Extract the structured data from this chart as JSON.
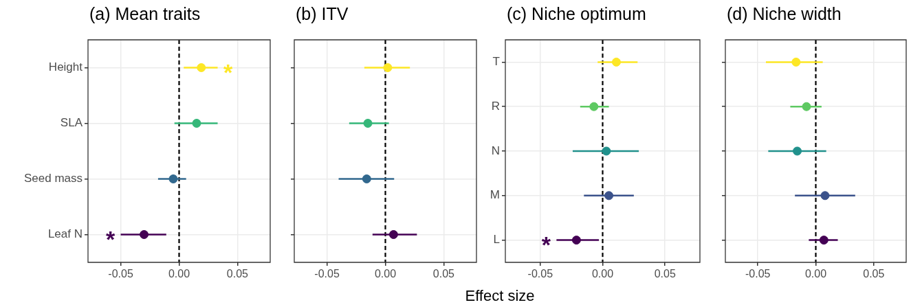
{
  "chart_data": [
    {
      "type": "scatter",
      "title": "(a) Mean traits",
      "orientation": "horizontal",
      "categories": [
        "Height",
        "SLA",
        "Seed mass",
        "Leaf N"
      ],
      "values": [
        0.019,
        0.015,
        -0.005,
        -0.03
      ],
      "errors": [
        [
          0.004,
          0.033
        ],
        [
          -0.004,
          0.033
        ],
        [
          -0.018,
          0.006
        ],
        [
          -0.05,
          -0.011
        ]
      ],
      "colors": [
        "#fde725",
        "#35b779",
        "#31688e",
        "#440154"
      ],
      "xlim": [
        -0.078,
        0.078
      ],
      "xticks": [
        {
          "value": -0.05,
          "label": "-0.05"
        },
        {
          "value": 0,
          "label": "0.00"
        },
        {
          "value": 0.05,
          "label": "0.05"
        }
      ],
      "ref_lines": [
        {
          "axis": "x",
          "value": 0,
          "line_style": "dashed",
          "color": "#000000"
        }
      ],
      "annotations": [
        {
          "text": "*",
          "x": 0.033,
          "y": "Height"
        },
        {
          "text": "*",
          "x": -0.05,
          "y": "Leaf N"
        }
      ],
      "grid": true,
      "marker": "circle",
      "legend": false
    },
    {
      "type": "scatter",
      "title": "(b) ITV",
      "xlabel": "Effect size",
      "orientation": "horizontal",
      "categories": [
        null,
        null,
        null,
        null
      ],
      "values": [
        0.002,
        -0.015,
        -0.016,
        0.007
      ],
      "errors": [
        [
          -0.018,
          0.021
        ],
        [
          -0.031,
          0.003
        ],
        [
          -0.04,
          0.0075
        ],
        [
          -0.011,
          0.027
        ]
      ],
      "colors": [
        "#fde725",
        "#35b779",
        "#31688e",
        "#440154"
      ],
      "xlim": [
        -0.078,
        0.078
      ],
      "xticks": [
        {
          "value": -0.05,
          "label": "-0.05"
        },
        {
          "value": 0,
          "label": "0.00"
        },
        {
          "value": 0.05,
          "label": "0.05"
        }
      ],
      "ref_lines": [
        {
          "axis": "x",
          "value": 0,
          "line_style": "dashed",
          "color": "#000000"
        }
      ],
      "grid": true,
      "marker": "circle",
      "legend": false,
      "tick_labels": "x"
    },
    {
      "type": "scatter",
      "title": "(c) Niche optimum",
      "orientation": "horizontal",
      "categories": [
        "T",
        "R",
        "N",
        "M",
        "L"
      ],
      "values": [
        0.011,
        -0.007,
        0.003,
        0.005,
        -0.021
      ],
      "errors": [
        [
          -0.004,
          0.028
        ],
        [
          -0.018,
          0.005
        ],
        [
          -0.024,
          0.029
        ],
        [
          -0.015,
          0.025
        ],
        [
          -0.037,
          -0.003
        ]
      ],
      "colors": [
        "#fde725",
        "#5ec962",
        "#21918c",
        "#3b528b",
        "#440154"
      ],
      "xlim": [
        -0.078,
        0.078
      ],
      "xticks": [
        {
          "value": -0.05,
          "label": "-0.05"
        },
        {
          "value": 0,
          "label": "0.00"
        },
        {
          "value": 0.05,
          "label": "0.05"
        }
      ],
      "ref_lines": [
        {
          "axis": "x",
          "value": 0,
          "line_style": "dashed",
          "color": "#000000"
        }
      ],
      "annotations": [
        {
          "text": "*",
          "x": -0.037,
          "y": "L"
        }
      ],
      "grid": true,
      "marker": "circle",
      "legend": false
    },
    {
      "type": "scatter",
      "title": "(d) Niche width",
      "orientation": "horizontal",
      "categories": [
        null,
        null,
        null,
        null,
        null
      ],
      "values": [
        -0.017,
        -0.008,
        -0.016,
        0.008,
        0.007
      ],
      "errors": [
        [
          -0.043,
          0.006
        ],
        [
          -0.022,
          0.005
        ],
        [
          -0.041,
          0.009
        ],
        [
          -0.018,
          0.034
        ],
        [
          -0.006,
          0.019
        ]
      ],
      "colors": [
        "#fde725",
        "#5ec962",
        "#21918c",
        "#3b528b",
        "#440154"
      ],
      "xlim": [
        -0.078,
        0.078
      ],
      "xticks": [
        {
          "value": -0.05,
          "label": "-0.05"
        },
        {
          "value": 0,
          "label": "0.00"
        },
        {
          "value": 0.05,
          "label": "0.05"
        }
      ],
      "ref_lines": [
        {
          "axis": "x",
          "value": 0,
          "line_style": "dashed",
          "color": "#000000"
        }
      ],
      "grid": true,
      "marker": "circle",
      "legend": false,
      "tick_labels": "x"
    }
  ]
}
